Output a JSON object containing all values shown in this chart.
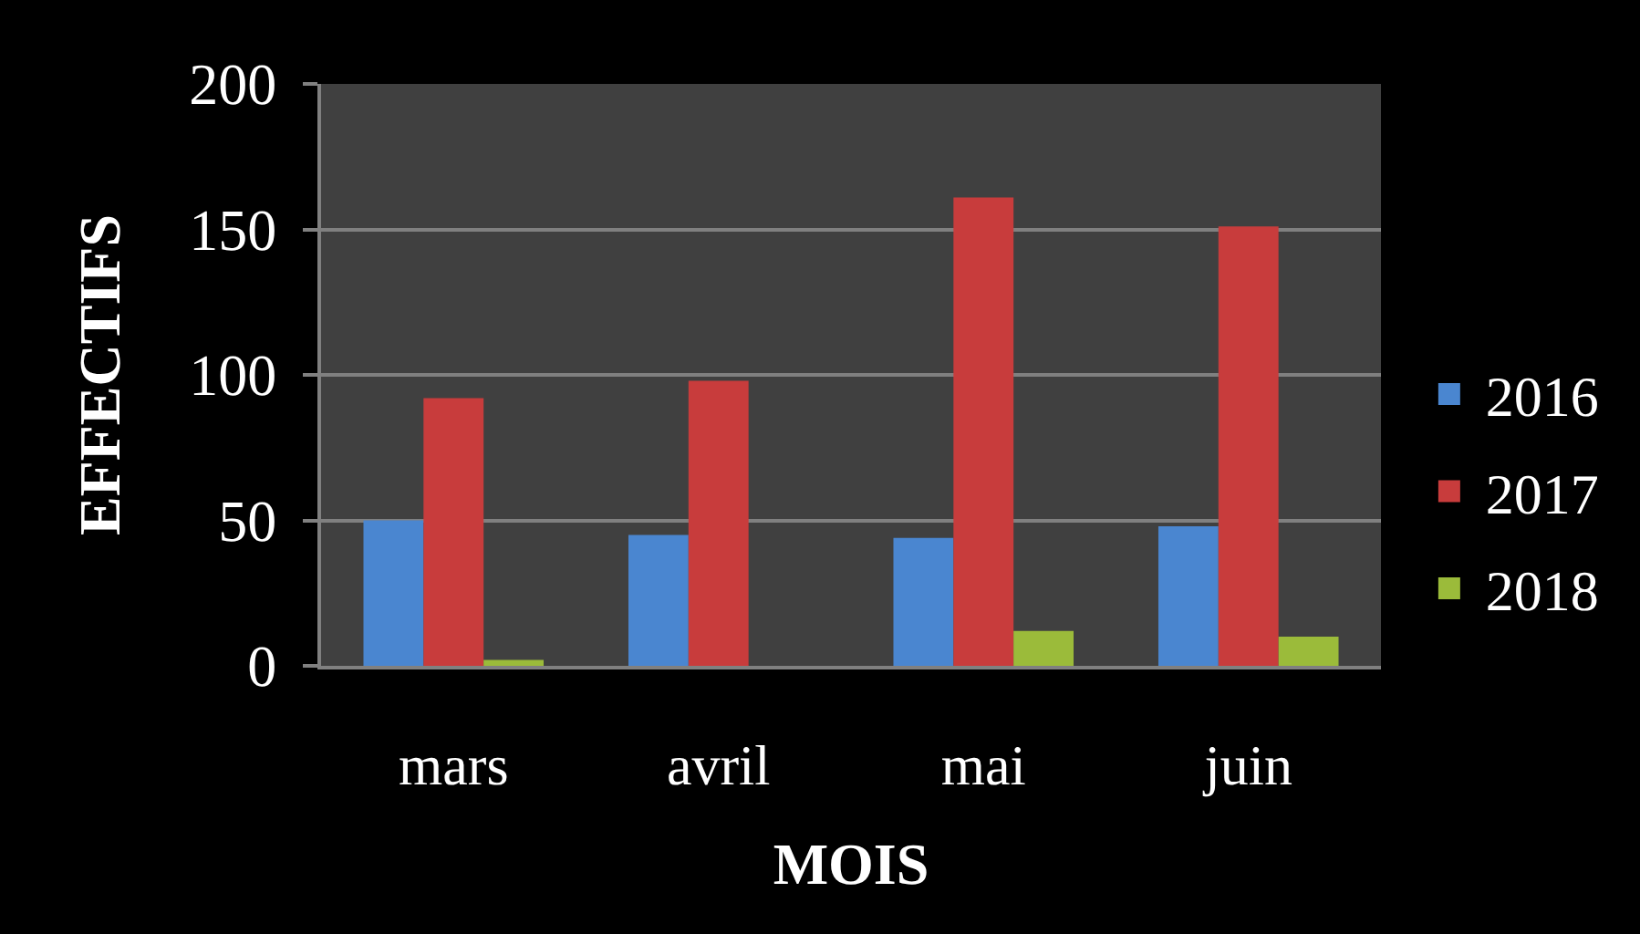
{
  "chart_data": {
    "type": "bar",
    "xlabel": "MOIS",
    "ylabel": "EFFECTIFS",
    "categories": [
      "mars",
      "avril",
      "mai",
      "juin"
    ],
    "series": [
      {
        "name": "2016",
        "color": "#4a86d0",
        "values": [
          50,
          45,
          44,
          48
        ]
      },
      {
        "name": "2017",
        "color": "#c83c3c",
        "values": [
          92,
          98,
          161,
          151
        ]
      },
      {
        "name": "2018",
        "color": "#9bbb3a",
        "values": [
          2,
          null,
          12,
          10
        ]
      }
    ],
    "ylim": [
      0,
      200
    ],
    "yticks": [
      0,
      50,
      100,
      150,
      200
    ],
    "grid": "y",
    "legend": "right"
  }
}
